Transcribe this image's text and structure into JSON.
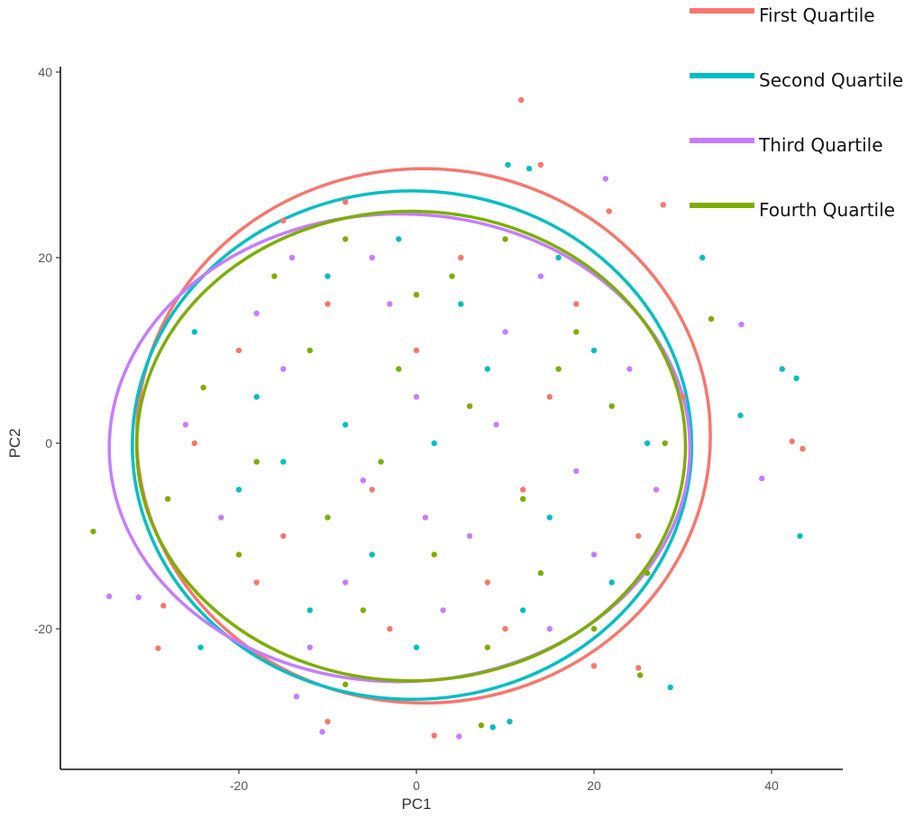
{
  "chart_data": {
    "type": "scatter",
    "title": "",
    "xlabel": "PC1",
    "ylabel": "PC2",
    "xlim": [
      -40,
      48
    ],
    "ylim": [
      -35,
      40
    ],
    "x_ticks": [
      -20,
      0,
      20,
      40
    ],
    "y_ticks": [
      -20,
      0,
      20,
      40
    ],
    "grid": false,
    "legend_position": "top-right",
    "series": [
      {
        "name": "First Quartile",
        "color": "#F8766D",
        "ellipse": {
          "cx": 0.8,
          "cy": 0.8,
          "rx": 32.3,
          "ry": 28.8
        },
        "points": [
          [
            11.8,
            37.0
          ],
          [
            14,
            30
          ],
          [
            21.7,
            25
          ],
          [
            27.8,
            25.7
          ],
          [
            25,
            -24.2
          ],
          [
            43.5,
            -0.6
          ],
          [
            42.3,
            0.2
          ],
          [
            -29.1,
            -22.1
          ],
          [
            -28.5,
            -17.5
          ],
          [
            2,
            -31.5
          ],
          [
            -10,
            -30
          ],
          [
            -15,
            24
          ],
          [
            -8,
            26
          ],
          [
            20,
            -24
          ],
          [
            10,
            -20
          ],
          [
            -20,
            10
          ],
          [
            -10,
            15
          ],
          [
            0,
            10
          ],
          [
            5,
            20
          ],
          [
            15,
            5
          ],
          [
            -5,
            -5
          ],
          [
            -15,
            -10
          ],
          [
            25,
            -10
          ],
          [
            30,
            5
          ],
          [
            -25,
            0
          ],
          [
            8,
            -15
          ],
          [
            -3,
            -20
          ],
          [
            18,
            15
          ],
          [
            -18,
            -15
          ],
          [
            12,
            -5
          ]
        ]
      },
      {
        "name": "Second Quartile",
        "color": "#00BFC4",
        "ellipse": {
          "cx": -0.5,
          "cy": -0.2,
          "rx": 31.5,
          "ry": 27.4
        },
        "points": [
          [
            43.2,
            -10
          ],
          [
            42.8,
            7
          ],
          [
            41.2,
            8
          ],
          [
            36.5,
            3
          ],
          [
            32.2,
            20
          ],
          [
            28.6,
            -26.3
          ],
          [
            8.6,
            -30.6
          ],
          [
            10.5,
            -30
          ],
          [
            -24.3,
            -22
          ],
          [
            10.3,
            30
          ],
          [
            12.7,
            29.6
          ],
          [
            -10,
            18
          ],
          [
            5,
            15
          ],
          [
            15,
            -8
          ],
          [
            -18,
            5
          ],
          [
            20,
            10
          ],
          [
            -5,
            -12
          ],
          [
            2,
            0
          ],
          [
            -12,
            -18
          ],
          [
            22,
            -15
          ],
          [
            -25,
            12
          ],
          [
            8,
            8
          ],
          [
            -8,
            2
          ],
          [
            16,
            20
          ],
          [
            -20,
            -5
          ],
          [
            26,
            0
          ],
          [
            0,
            -22
          ],
          [
            -2,
            22
          ],
          [
            12,
            -18
          ],
          [
            -15,
            -2
          ]
        ]
      },
      {
        "name": "Third Quartile",
        "color": "#C77CFF",
        "ellipse": {
          "cx": -1.9,
          "cy": -0.5,
          "rx": 32.7,
          "ry": 25.2
        },
        "points": [
          [
            -34.6,
            -16.5
          ],
          [
            -31.3,
            -16.6
          ],
          [
            38.9,
            -3.8
          ],
          [
            36.6,
            12.8
          ],
          [
            21.3,
            28.5
          ],
          [
            -10.6,
            -31.1
          ],
          [
            -13.5,
            -27.3
          ],
          [
            4.8,
            -31.6
          ],
          [
            -5,
            20
          ],
          [
            10,
            12
          ],
          [
            -15,
            8
          ],
          [
            18,
            -3
          ],
          [
            0,
            5
          ],
          [
            -22,
            -8
          ],
          [
            6,
            -10
          ],
          [
            -8,
            -15
          ],
          [
            24,
            8
          ],
          [
            14,
            18
          ],
          [
            -12,
            -22
          ],
          [
            3,
            -18
          ],
          [
            -18,
            14
          ],
          [
            20,
            -12
          ],
          [
            -3,
            15
          ],
          [
            9,
            2
          ],
          [
            -26,
            2
          ],
          [
            15,
            -20
          ],
          [
            -6,
            -4
          ],
          [
            27,
            -5
          ],
          [
            -14,
            20
          ],
          [
            1,
            -8
          ]
        ]
      },
      {
        "name": "Fourth Quartile",
        "color": "#7CAE00",
        "ellipse": {
          "cx": -0.6,
          "cy": -0.3,
          "rx": 30.9,
          "ry": 25.3
        },
        "points": [
          [
            -36.4,
            -9.5
          ],
          [
            33.2,
            13.4
          ],
          [
            25.2,
            -25
          ],
          [
            7.3,
            -30.4
          ],
          [
            -8,
            22
          ],
          [
            4,
            18
          ],
          [
            -12,
            10
          ],
          [
            12,
            -6
          ],
          [
            -4,
            -2
          ],
          [
            18,
            12
          ],
          [
            -20,
            -12
          ],
          [
            8,
            -22
          ],
          [
            -16,
            18
          ],
          [
            22,
            4
          ],
          [
            -2,
            8
          ],
          [
            14,
            -14
          ],
          [
            -24,
            6
          ],
          [
            6,
            4
          ],
          [
            -10,
            -8
          ],
          [
            26,
            -14
          ],
          [
            -6,
            -18
          ],
          [
            10,
            22
          ],
          [
            -18,
            -2
          ],
          [
            2,
            -12
          ],
          [
            20,
            -20
          ],
          [
            -28,
            -6
          ],
          [
            16,
            8
          ],
          [
            -8,
            -26
          ],
          [
            28,
            0
          ],
          [
            0,
            16
          ]
        ]
      }
    ]
  }
}
